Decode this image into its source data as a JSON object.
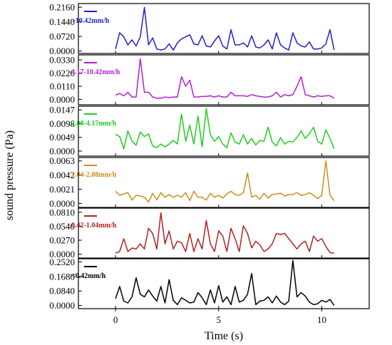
{
  "chart_data": {
    "type": "line",
    "xlabel": "Time (s)",
    "ylabel": "sound pressure (Pa)",
    "xlim": [
      -1.8,
      12.3
    ],
    "xticks": [
      0,
      5,
      10
    ],
    "x": [
      0,
      0.2,
      0.4,
      0.6,
      0.8,
      1.0,
      1.2,
      1.4,
      1.6,
      1.8,
      2.0,
      2.2,
      2.4,
      2.6,
      2.8,
      3.0,
      3.2,
      3.4,
      3.6,
      3.8,
      4.0,
      4.2,
      4.4,
      4.6,
      4.8,
      5.0,
      5.2,
      5.4,
      5.6,
      5.8,
      6.0,
      6.2,
      6.4,
      6.6,
      6.8,
      7.0,
      7.2,
      7.4,
      7.6,
      7.8,
      8.0,
      8.2,
      8.4,
      8.6,
      8.8,
      9.0,
      9.2,
      9.4,
      9.6,
      9.8,
      10.0,
      10.2,
      10.4,
      10.6
    ],
    "panels": [
      {
        "legend": ">10.42mm/h",
        "color": "#1f1fcc",
        "ylim": [
          -0.012,
          0.234
        ],
        "yticks": [
          "0.0000",
          "0.0720",
          "0.1440",
          "0.2160"
        ],
        "ytick_values": [
          0,
          0.072,
          0.144,
          0.216
        ],
        "values": [
          0.01,
          0.09,
          0.07,
          0.03,
          0.055,
          0.025,
          0.07,
          0.215,
          0.03,
          0.065,
          0.01,
          0.005,
          0.01,
          0.035,
          0.005,
          0.04,
          0.06,
          0.07,
          0.08,
          0.035,
          0.03,
          0.075,
          0.025,
          0.02,
          0.05,
          0.075,
          0.025,
          0.01,
          0.105,
          0.03,
          0.03,
          0.04,
          0.02,
          0.075,
          0.02,
          0.015,
          0.03,
          0.055,
          0.01,
          0.09,
          0.03,
          0.015,
          0.005,
          0.09,
          0.04,
          0.025,
          0.02,
          0.045,
          0.01,
          0.01,
          0.015,
          0.035,
          0.105,
          0.005
        ]
      },
      {
        "legend": "4.17-10.42mm/h",
        "color": "#b21fd8",
        "ylim": [
          -0.0045,
          0.0372
        ],
        "yticks": [
          "0.0000",
          "0.0110",
          "0.0220",
          "0.0330"
        ],
        "ytick_values": [
          0,
          0.011,
          0.022,
          0.033
        ],
        "values": [
          0.0035,
          0.005,
          0.003,
          0.006,
          0.002,
          0.002,
          0.034,
          0.006,
          0.006,
          0.002,
          0.001,
          0.001,
          0.002,
          0.0015,
          0.002,
          0.002,
          0.019,
          0.011,
          0.016,
          0.002,
          0.002,
          0.0025,
          0.0025,
          0.003,
          0.002,
          0.003,
          0.002,
          0.002,
          0.006,
          0.003,
          0.003,
          0.003,
          0.0025,
          0.004,
          0.003,
          0.0025,
          0.002,
          0.002,
          0.003,
          0.006,
          0.002,
          0.004,
          0.003,
          0.004,
          0.011,
          0.019,
          0.004,
          0.003,
          0.002,
          0.003,
          0.0025,
          0.003,
          0.003,
          0.001
        ]
      },
      {
        "legend": "2.08-4.17mm/h",
        "color": "#22cc22",
        "ylim": [
          -0.0018,
          0.016
        ],
        "yticks": [
          "0.0000",
          "0.0049",
          "0.0098",
          "0.0147"
        ],
        "ytick_values": [
          0,
          0.0049,
          0.0098,
          0.0147
        ],
        "values": [
          0.0059,
          0.0052,
          0.0008,
          0.0072,
          0.0035,
          0.0021,
          0.0068,
          0.0052,
          0.0061,
          0.0018,
          0.0012,
          0.0025,
          0.0015,
          0.0025,
          0.0038,
          0.0025,
          0.0132,
          0.0035,
          0.0092,
          0.0025,
          0.0125,
          0.0015,
          0.0152,
          0.0058,
          0.0035,
          0.0052,
          0.0025,
          0.0012,
          0.0065,
          0.0032,
          0.0025,
          0.0058,
          0.0025,
          0.0045,
          0.0022,
          0.0038,
          0.0035,
          0.0085,
          0.0032,
          0.0018,
          0.0048,
          0.0025,
          0.0035,
          0.0032,
          0.0048,
          0.0072,
          0.0045,
          0.0062,
          0.0085,
          0.0035,
          0.0025,
          0.0075,
          0.0045,
          0.0008
        ]
      },
      {
        "legend": "1.04-2.08mm/h",
        "color": "#d08c1c",
        "ylim": [
          -0.0006,
          0.0068
        ],
        "yticks": [
          "0.0000",
          "0.0021",
          "0.0042",
          "0.0063"
        ],
        "ytick_values": [
          0,
          0.0021,
          0.0042,
          0.0063
        ],
        "values": [
          0.0018,
          0.0012,
          0.0014,
          0.0016,
          0.0005,
          0.0012,
          0.0011,
          0.0009,
          0.0002,
          0.0015,
          0.0005,
          0.0016,
          0.0009,
          0.0013,
          0.0009,
          0.0012,
          0.0009,
          0.0016,
          0.0004,
          0.0018,
          0.0009,
          0.0009,
          0.0005,
          0.0015,
          0.0009,
          0.0012,
          0.0008,
          0.0014,
          0.0018,
          0.0013,
          0.0012,
          0.0016,
          0.0045,
          0.0009,
          0.0012,
          0.0006,
          0.0015,
          0.0008,
          0.0013,
          0.0014,
          0.0015,
          0.0011,
          0.0013,
          0.0013,
          0.0016,
          0.0012,
          0.0013,
          0.0016,
          0.0012,
          0.0007,
          0.0012,
          0.0063,
          0.0012,
          0.0004
        ]
      },
      {
        "legend": "0.42-1.04mm/h",
        "color": "#b22222",
        "ylim": [
          -0.0075,
          0.089
        ],
        "yticks": [
          "0.0000",
          "0.0270",
          "0.0540",
          "0.0810"
        ],
        "ytick_values": [
          0,
          0.027,
          0.054,
          0.081
        ],
        "values": [
          0.002,
          0.005,
          0.03,
          0.005,
          0.012,
          0.01,
          0.02,
          0.01,
          0.05,
          0.04,
          0.01,
          0.08,
          0.02,
          0.045,
          0.01,
          0.025,
          0.022,
          0.005,
          0.04,
          0.005,
          0.03,
          0.01,
          0.065,
          0.02,
          0.005,
          0.045,
          0.035,
          0.005,
          0.05,
          0.03,
          0.005,
          0.055,
          0.04,
          0.012,
          0.025,
          0.018,
          0.005,
          0.01,
          0.02,
          0.04,
          0.038,
          0.04,
          0.03,
          0.02,
          0.01,
          0.02,
          0.025,
          0.005,
          0.035,
          0.025,
          0.03,
          0.015,
          0.003,
          0.002
        ]
      },
      {
        "legend": "<0.42mm/h",
        "color": "#000000",
        "ylim": [
          -0.018,
          0.27
        ],
        "yticks": [
          "0.0000",
          "0.0840",
          "0.1680",
          "0.2520"
        ],
        "ytick_values": [
          0,
          0.084,
          0.168,
          0.252
        ],
        "values": [
          0.04,
          0.11,
          0.025,
          0.015,
          0.05,
          0.16,
          0.065,
          0.05,
          0.09,
          0.055,
          0.025,
          0.11,
          0.015,
          0.15,
          0.03,
          0.005,
          0.045,
          0.03,
          0.015,
          0.02,
          0.075,
          0.045,
          0.005,
          0.09,
          0.015,
          0.115,
          0.02,
          0.05,
          0.005,
          0.11,
          0.02,
          0.03,
          0.065,
          0.185,
          0.005,
          0.025,
          0.03,
          0.05,
          0.015,
          0.055,
          0.02,
          0.005,
          0.025,
          0.26,
          0.05,
          0.075,
          0.055,
          0.02,
          0.005,
          0.01,
          0.03,
          0.02,
          0.035,
          0.0
        ]
      }
    ]
  }
}
